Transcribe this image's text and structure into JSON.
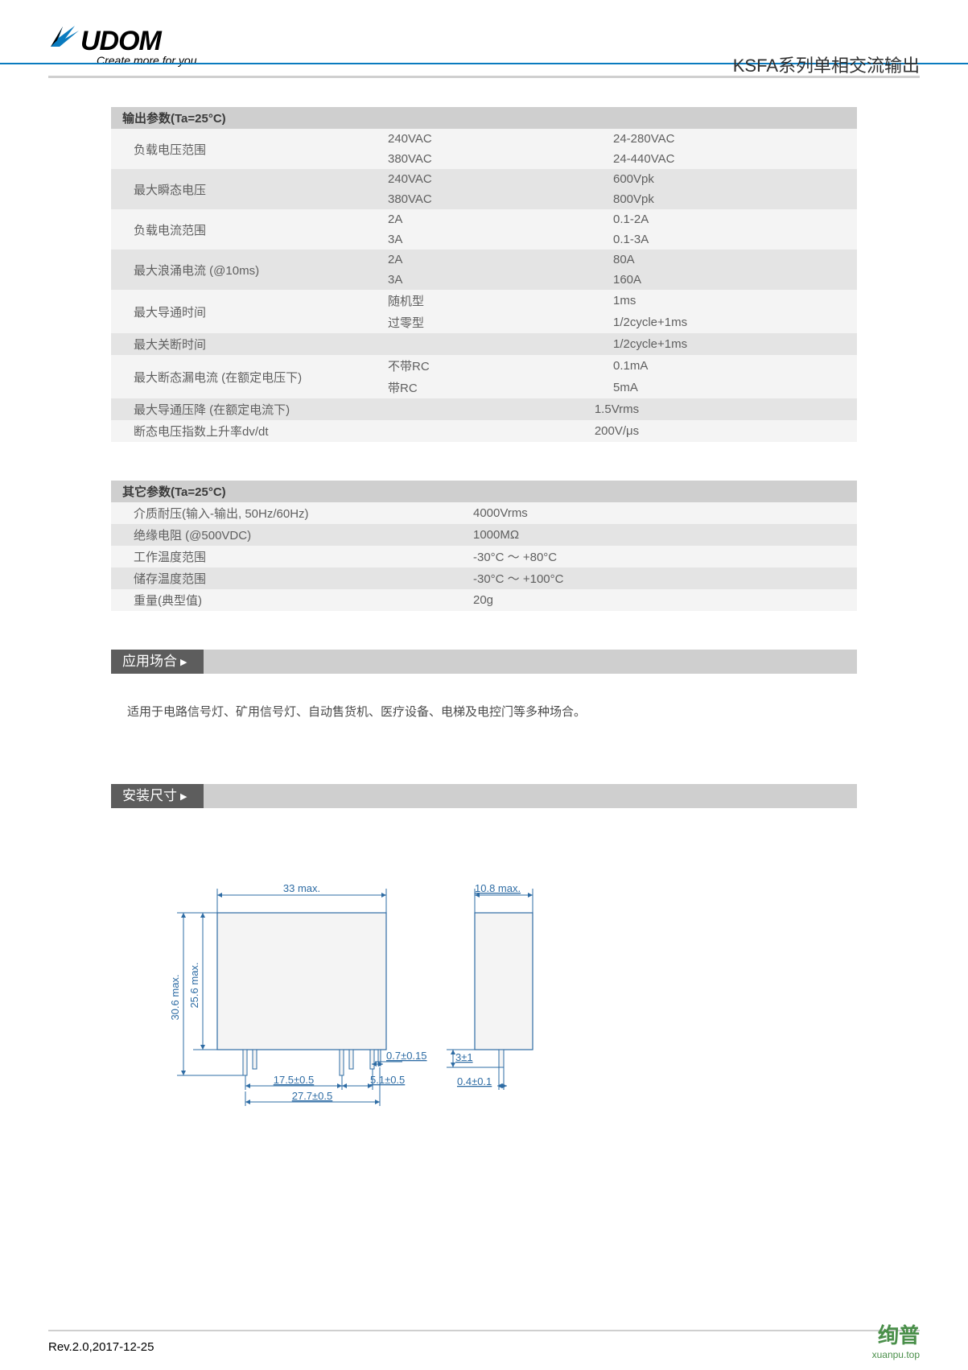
{
  "header": {
    "brand_text": "UDOM",
    "tagline": "Create more for you",
    "doc_title": "KSFA系列单相交流输出"
  },
  "colors": {
    "blue": "#0a7bbf",
    "grey_light": "#f4f4f4",
    "grey_mid": "#e4e4e4",
    "grey_head": "#cfcfcf",
    "bar_dark": "#5d5d5d",
    "text": "#5f5f5f",
    "wm": "#4a8f4a"
  },
  "output_params": {
    "heading": "输出参数(Ta=25°C)",
    "rows": [
      {
        "label": "负载电压范围",
        "sub": [
          {
            "mid": "240VAC",
            "val": "24-280VAC"
          },
          {
            "mid": "380VAC",
            "val": "24-440VAC"
          }
        ],
        "tone": "odd"
      },
      {
        "label": "最大瞬态电压",
        "sub": [
          {
            "mid": "240VAC",
            "val": "600Vpk"
          },
          {
            "mid": "380VAC",
            "val": "800Vpk"
          }
        ],
        "tone": "even"
      },
      {
        "label": "负载电流范围",
        "sub": [
          {
            "mid": "2A",
            "val": "0.1-2A"
          },
          {
            "mid": "3A",
            "val": "0.1-3A"
          }
        ],
        "tone": "odd"
      },
      {
        "label": "最大浪涌电流 (@10ms)",
        "sub": [
          {
            "mid": "2A",
            "val": "80A"
          },
          {
            "mid": "3A",
            "val": "160A"
          }
        ],
        "tone": "even"
      },
      {
        "label": "最大导通时间",
        "sub": [
          {
            "mid": "随机型",
            "val": "1ms"
          },
          {
            "mid": "过零型",
            "val": "1/2cycle+1ms"
          }
        ],
        "tone": "odd"
      },
      {
        "label": "最大关断时间",
        "sub": [
          {
            "mid": "",
            "val": "1/2cycle+1ms"
          }
        ],
        "tone": "even"
      },
      {
        "label": "最大断态漏电流 (在额定电压下)",
        "sub": [
          {
            "mid": "不带RC",
            "val": "0.1mA"
          },
          {
            "mid": "带RC",
            "val": "5mA"
          }
        ],
        "tone": "odd"
      },
      {
        "label": "最大导通压降 (在额定电流下)",
        "center": "1.5Vrms",
        "tone": "even"
      },
      {
        "label": "断态电压指数上升率dv/dt",
        "center": "200V/μs",
        "tone": "odd"
      }
    ]
  },
  "other_params": {
    "heading": "其它参数(Ta=25°C)",
    "rows": [
      {
        "label": "介质耐压(输入-输出, 50Hz/60Hz)",
        "val": "4000Vrms",
        "tone": "odd"
      },
      {
        "label": "绝缘电阻 (@500VDC)",
        "val": "1000MΩ",
        "tone": "even"
      },
      {
        "label": "工作温度范围",
        "val": "-30°C ～ +80°C",
        "tone": "odd"
      },
      {
        "label": "储存温度范围",
        "val": "-30°C ～ +100°C",
        "tone": "even"
      },
      {
        "label": "重量(典型值)",
        "val": "20g",
        "tone": "odd"
      }
    ]
  },
  "sections": {
    "application_title": "应用场合",
    "application_text": "适用于电路信号灯、矿用信号灯、自动售货机、医疗设备、电梯及电控门等多种场合。",
    "dimensions_title": "安装尺寸"
  },
  "drawing": {
    "overall_width": "33 max.",
    "overall_height": "30.6 max.",
    "body_height": "25.6 max.",
    "side_width": "10.8 max.",
    "pin_w": "0.7±0.15",
    "pitch1": "17.5±0.5",
    "pitch2": "5.1±0.5",
    "pitch3": "27.7±0.5",
    "side_pin_h": "3±1",
    "side_pin_w": "0.4±0.1",
    "stroke": "#2e6ca4",
    "text_color": "#2e6ca4",
    "fill": "#f4f4f4"
  },
  "footer": {
    "rev": "Rev.2.0,2017-12-25",
    "wm_big": "绚普",
    "wm_small": "xuanpu.top"
  }
}
